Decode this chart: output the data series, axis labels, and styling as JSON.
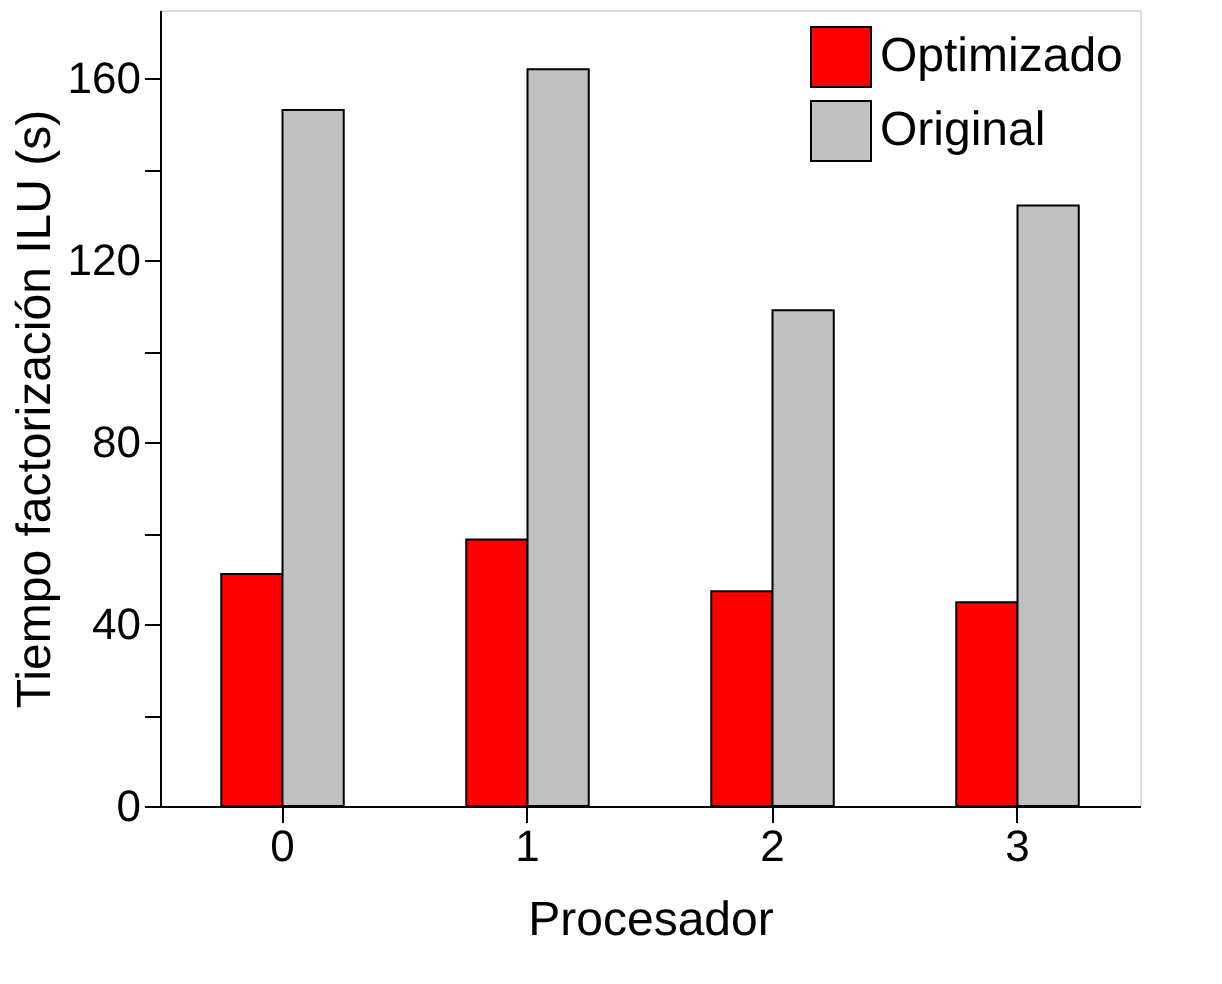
{
  "chart_data": {
    "type": "bar",
    "xlabel": "Procesador",
    "ylabel": "Tiempo factorización ILU (s)",
    "categories": [
      "0",
      "1",
      "2",
      "3"
    ],
    "series": [
      {
        "name": "Optimizado",
        "color": "#ff0000",
        "values": [
          51,
          58.6,
          47.2,
          44.8
        ]
      },
      {
        "name": "Original",
        "color": "#c0c0c0",
        "values": [
          153,
          162,
          109,
          132
        ]
      }
    ],
    "ylim": [
      0,
      175
    ],
    "yticks": [
      0,
      {
        "value": 20,
        "label": null
      },
      40,
      {
        "value": 60,
        "label": null
      },
      80,
      {
        "value": 100,
        "label": null
      },
      120,
      {
        "value": 140,
        "label": null
      },
      160
    ],
    "grid": false,
    "legend": "top right"
  }
}
